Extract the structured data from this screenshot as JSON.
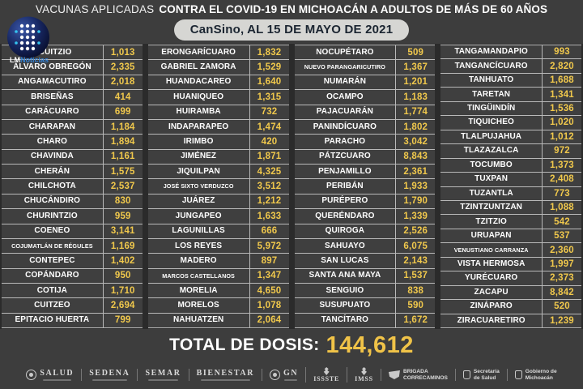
{
  "header": {
    "title_light": "VACUNAS APLICADAS",
    "title_bold": "CONTRA EL COVID-19 EN MICHOACÁN A ADULTOS DE MÁS DE 60 AÑOS",
    "pill": "CanSino, AL 15 DE MAYO DE 2021",
    "logo_lm": "LM",
    "logo_noticias": "Noticias"
  },
  "table": {
    "columns": [
      {
        "rows": [
          {
            "name": "ACUITZIO",
            "value": "1,013"
          },
          {
            "name": "ÁLVARO OBREGÓN",
            "value": "2,335"
          },
          {
            "name": "ANGAMACUTIRO",
            "value": "2,018"
          },
          {
            "name": "BRISEÑAS",
            "value": "414"
          },
          {
            "name": "CARÁCUARO",
            "value": "699"
          },
          {
            "name": "CHARAPAN",
            "value": "1,184"
          },
          {
            "name": "CHARO",
            "value": "1,894"
          },
          {
            "name": "CHAVINDA",
            "value": "1,161"
          },
          {
            "name": "CHERÁN",
            "value": "1,575"
          },
          {
            "name": "CHILCHOTA",
            "value": "2,537"
          },
          {
            "name": "CHUCÁNDIRO",
            "value": "830"
          },
          {
            "name": "CHURINTZIO",
            "value": "959"
          },
          {
            "name": "COENEO",
            "value": "3,141"
          },
          {
            "name": "COJUMATLÁN DE RÉGULES",
            "value": "1,169"
          },
          {
            "name": "CONTEPEC",
            "value": "1,402"
          },
          {
            "name": "COPÁNDARO",
            "value": "950"
          },
          {
            "name": "COTIJA",
            "value": "1,710"
          },
          {
            "name": "CUITZEO",
            "value": "2,694"
          },
          {
            "name": "EPITACIO HUERTA",
            "value": "799"
          }
        ]
      },
      {
        "rows": [
          {
            "name": "ERONGARÍCUARO",
            "value": "1,832"
          },
          {
            "name": "GABRIEL ZAMORA",
            "value": "1,529"
          },
          {
            "name": "HUANDACAREO",
            "value": "1,640"
          },
          {
            "name": "HUANIQUEO",
            "value": "1,315"
          },
          {
            "name": "HUIRAMBA",
            "value": "732"
          },
          {
            "name": "INDAPARAPEO",
            "value": "1,474"
          },
          {
            "name": "IRIMBO",
            "value": "420"
          },
          {
            "name": "JIMÉNEZ",
            "value": "1,871"
          },
          {
            "name": "JIQUILPAN",
            "value": "4,325"
          },
          {
            "name": "JOSÉ SIXTO VERDUZCO",
            "value": "3,512"
          },
          {
            "name": "JUÁREZ",
            "value": "1,212"
          },
          {
            "name": "JUNGAPEO",
            "value": "1,633"
          },
          {
            "name": "LAGUNILLAS",
            "value": "666"
          },
          {
            "name": "LOS REYES",
            "value": "5,972"
          },
          {
            "name": "MADERO",
            "value": "897"
          },
          {
            "name": "MARCOS CASTELLANOS",
            "value": "1,347"
          },
          {
            "name": "MORELIA",
            "value": "4,650"
          },
          {
            "name": "MORELOS",
            "value": "1,078"
          },
          {
            "name": "NAHUATZEN",
            "value": "2,064"
          }
        ]
      },
      {
        "rows": [
          {
            "name": "NOCUPÉTARO",
            "value": "509"
          },
          {
            "name": "NUEVO PARANGARICUTIRO",
            "value": "1,367"
          },
          {
            "name": "NUMARÁN",
            "value": "1,201"
          },
          {
            "name": "OCAMPO",
            "value": "1,183"
          },
          {
            "name": "PAJACUARÁN",
            "value": "1,774"
          },
          {
            "name": "PANINDÍCUARO",
            "value": "1,802"
          },
          {
            "name": "PARACHO",
            "value": "3,042"
          },
          {
            "name": "PÁTZCUARO",
            "value": "8,843"
          },
          {
            "name": "PENJAMILLO",
            "value": "2,361"
          },
          {
            "name": "PERIBÁN",
            "value": "1,933"
          },
          {
            "name": "PURÉPERO",
            "value": "1,790"
          },
          {
            "name": "QUERÉNDARO",
            "value": "1,339"
          },
          {
            "name": "QUIROGA",
            "value": "2,526"
          },
          {
            "name": "SAHUAYO",
            "value": "6,075"
          },
          {
            "name": "SAN LUCAS",
            "value": "2,143"
          },
          {
            "name": "SANTA ANA MAYA",
            "value": "1,537"
          },
          {
            "name": "SENGUIO",
            "value": "838"
          },
          {
            "name": "SUSUPUATO",
            "value": "590"
          },
          {
            "name": "TANCÍTARO",
            "value": "1,672"
          }
        ]
      },
      {
        "rows": [
          {
            "name": "TANGAMANDAPIO",
            "value": "993"
          },
          {
            "name": "TANGANCÍCUARO",
            "value": "2,820"
          },
          {
            "name": "TANHUATO",
            "value": "1,688"
          },
          {
            "name": "TARETAN",
            "value": "1,341"
          },
          {
            "name": "TINGÜINDÍN",
            "value": "1,536"
          },
          {
            "name": "TIQUICHEO",
            "value": "1,020"
          },
          {
            "name": "TLALPUJAHUA",
            "value": "1,012"
          },
          {
            "name": "TLAZAZALCA",
            "value": "972"
          },
          {
            "name": "TOCUMBO",
            "value": "1,373"
          },
          {
            "name": "TUXPAN",
            "value": "2,408"
          },
          {
            "name": "TUZANTLA",
            "value": "773"
          },
          {
            "name": "TZINTZUNTZAN",
            "value": "1,088"
          },
          {
            "name": "TZITZIO",
            "value": "542"
          },
          {
            "name": "URUAPAN",
            "value": "537"
          },
          {
            "name": "VENUSTIANO CARRANZA",
            "value": "2,360"
          },
          {
            "name": "VISTA HERMOSA",
            "value": "1,997"
          },
          {
            "name": "YURÉCUARO",
            "value": "2,373"
          },
          {
            "name": "ZACAPU",
            "value": "8,842"
          },
          {
            "name": "ZINÁPARO",
            "value": "520"
          },
          {
            "name": "ZIRACUARETIRO",
            "value": "1,239"
          }
        ]
      }
    ]
  },
  "total": {
    "label": "TOTAL DE DOSIS:",
    "value": "144,612"
  },
  "footer": {
    "items": [
      {
        "id": "salud",
        "label": "SALUD",
        "icon": "crest-circle-icon",
        "style": "serif",
        "sub": true
      },
      {
        "id": "sedena",
        "label": "SEDENA",
        "icon": "",
        "style": "serif",
        "sub": true
      },
      {
        "id": "semar",
        "label": "SEMAR",
        "icon": "",
        "style": "serif",
        "sub": true
      },
      {
        "id": "bienestar",
        "label": "BIENESTAR",
        "icon": "",
        "style": "serif",
        "sub": true
      },
      {
        "id": "gn",
        "label": "GN",
        "icon": "eagle-circle-icon",
        "style": "serif-row",
        "sub": true
      },
      {
        "id": "issste",
        "label": "ISSSTE",
        "icon": "eagle-icon",
        "style": "stack",
        "sub": false
      },
      {
        "id": "imss",
        "label": "IMSS",
        "icon": "eagle-icon",
        "style": "stack",
        "sub": false
      },
      {
        "id": "brigada-correcaminos",
        "label": "BRIGADA",
        "label2": "CORRECAMINOS",
        "icon": "shield-icon",
        "style": "two-line"
      },
      {
        "id": "secretaria-de-salud",
        "label": "Secretaría",
        "label2": "de Salud",
        "icon": "crest-icon",
        "style": "two-line"
      },
      {
        "id": "gobierno-de-michoacan",
        "label": "Gobierno de",
        "label2": "Michoacán",
        "icon": "crest-icon",
        "style": "two-line"
      }
    ]
  },
  "colors": {
    "background": "#3d3d3d",
    "row_line": "#b9b9b9",
    "accent_yellow": "#f0c348",
    "pill_bg": "#d6d6d3",
    "pill_text": "#1b2531",
    "text": "#ffffff",
    "logo_blue": "#2f7fd6"
  }
}
